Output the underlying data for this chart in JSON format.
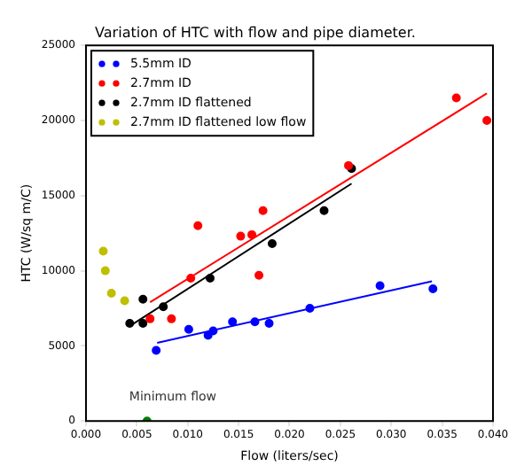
{
  "chart_data": {
    "type": "scatter",
    "title": "Variation of HTC with flow and pipe diameter.",
    "xlabel": "Flow (liters/sec)",
    "ylabel": "HTC (W/sq m/C)",
    "series": [
      {
        "name": "5.5mm ID",
        "color": "#0000ff",
        "x": [
          0.0069,
          0.0101,
          0.012,
          0.0125,
          0.0144,
          0.0166,
          0.018,
          0.022,
          0.0289,
          0.0341
        ],
        "values": [
          4700,
          6100,
          5700,
          6000,
          6600,
          6600,
          6500,
          7500,
          9000,
          8800
        ]
      },
      {
        "name": "2.7mm ID",
        "color": "#ff0000",
        "x": [
          0.0063,
          0.0084,
          0.0103,
          0.011,
          0.0152,
          0.0163,
          0.017,
          0.0174,
          0.0258,
          0.0364,
          0.0394
        ],
        "values": [
          6800,
          6800,
          9500,
          13000,
          12300,
          12400,
          9700,
          14000,
          17000,
          21500,
          20000
        ]
      },
      {
        "name": "2.7mm ID flattened",
        "color": "#000000",
        "x": [
          0.0043,
          0.0056,
          0.0056,
          0.0076,
          0.0122,
          0.0183,
          0.0234,
          0.0261
        ],
        "values": [
          6500,
          6500,
          8100,
          7600,
          9500,
          11800,
          14000,
          16800
        ]
      },
      {
        "name": "2.7mm ID flattened low flow",
        "color": "#bfbf00",
        "x": [
          0.0017,
          0.0019,
          0.0025,
          0.0038
        ],
        "values": [
          11300,
          10000,
          8500,
          8000
        ]
      },
      {
        "color": "#007f00",
        "x": [
          0.006
        ],
        "values": [
          0
        ]
      },
      {
        "type": "line",
        "marker": "none",
        "color": "#0000ff",
        "x": [
          0.007,
          0.034
        ],
        "values": [
          5200,
          9300
        ]
      },
      {
        "type": "line",
        "marker": "none",
        "color": "#ff0000",
        "x": [
          0.0063,
          0.0394
        ],
        "values": [
          7900,
          21800
        ]
      },
      {
        "type": "line",
        "marker": "none",
        "color": "#000000",
        "x": [
          0.0045,
          0.0261
        ],
        "values": [
          6400,
          15800
        ]
      }
    ],
    "xlim": [
      0,
      0.04
    ],
    "xticks": [
      {
        "value": 0,
        "label": "0.000"
      },
      {
        "value": 0.005,
        "label": "0.005"
      },
      {
        "value": 0.01,
        "label": "0.010"
      },
      {
        "value": 0.015,
        "label": "0.015"
      },
      {
        "value": 0.02,
        "label": "0.020"
      },
      {
        "value": 0.025,
        "label": "0.025"
      },
      {
        "value": 0.03,
        "label": "0.030"
      },
      {
        "value": 0.035,
        "label": "0.035"
      },
      {
        "value": 0.04,
        "label": "0.040"
      }
    ],
    "ylim": [
      0,
      25000
    ],
    "yticks": [
      0,
      5000,
      10000,
      15000,
      20000,
      25000
    ],
    "marker": "circle",
    "grid": false,
    "legend": "top left",
    "annotations": [
      {
        "text": "Minimum flow",
        "x": 0.006,
        "y": 0
      }
    ]
  }
}
